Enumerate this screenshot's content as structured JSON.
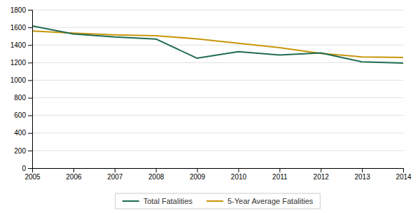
{
  "chart_data": {
    "type": "line",
    "x": [
      2005,
      2006,
      2007,
      2008,
      2009,
      2010,
      2011,
      2012,
      2013,
      2014
    ],
    "xlim": [
      2005,
      2014
    ],
    "xticks": [
      2005,
      2006,
      2007,
      2008,
      2009,
      2010,
      2011,
      2012,
      2013,
      2014
    ],
    "ylim": [
      0,
      1800
    ],
    "yticks": [
      0,
      200,
      400,
      600,
      800,
      1000,
      1200,
      1400,
      1600,
      1800
    ],
    "grid": "y",
    "legend": "bottom",
    "series": [
      {
        "name": "Total Fatalities",
        "color": "#1e6b52",
        "values": [
          1616,
          1525,
          1491,
          1468,
          1250,
          1324,
          1286,
          1310,
          1208,
          1195
        ]
      },
      {
        "name": "5-Year Average Fatalities",
        "color": "#c8960a",
        "values": [
          1560,
          1535,
          1515,
          1505,
          1470,
          1420,
          1370,
          1305,
          1265,
          1258
        ]
      }
    ]
  }
}
